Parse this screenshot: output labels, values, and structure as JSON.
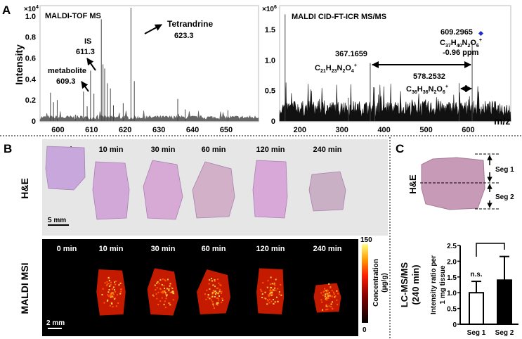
{
  "panels": {
    "a": "A",
    "b": "B",
    "c": "C"
  },
  "chart_data": [
    {
      "type": "line",
      "title": "MALDI-TOF MS",
      "xlabel": "",
      "ylabel": "Intensity",
      "y_multiplier": "×10",
      "y_exponent": "4",
      "xlim": [
        594.7,
        659.6
      ],
      "ylim": [
        0,
        1.1
      ],
      "xticks": [
        600,
        610,
        620,
        630,
        640,
        650
      ],
      "yticks": [
        0,
        0.2,
        0.4,
        0.6,
        0.8,
        1.0
      ],
      "ytick_labels": [
        "0",
        "0.2",
        "0.4",
        "0.6",
        "0.8",
        "1.0"
      ],
      "peaks": [
        [
          597.8,
          0.27
        ],
        [
          598.7,
          0.18
        ],
        [
          599.8,
          0.2
        ],
        [
          605.2,
          0.06
        ],
        [
          607.6,
          0.28
        ],
        [
          608.7,
          0.14
        ],
        [
          609.7,
          0.48
        ],
        [
          610.7,
          0.26
        ],
        [
          612.9,
          0.97
        ],
        [
          613.4,
          0.54
        ],
        [
          613.9,
          0.5
        ],
        [
          614.7,
          0.36
        ],
        [
          615.6,
          0.31
        ],
        [
          616.5,
          0.15
        ],
        [
          619.4,
          0.17
        ],
        [
          621.7,
          1.08
        ],
        [
          622.7,
          0.38
        ],
        [
          635.6,
          0.21
        ],
        [
          637.8,
          0.11
        ],
        [
          650.5,
          0.1
        ]
      ],
      "annotations": [
        {
          "label": "metabolite",
          "value": "609.3"
        },
        {
          "label": "IS",
          "value": "611.3"
        },
        {
          "label": "Tetrandrine",
          "value": "623.3"
        }
      ]
    },
    {
      "type": "line",
      "title": "MALDI CID-FT-ICR MS/MS",
      "xlabel": "m/z",
      "y_multiplier": "×10",
      "y_exponent": "6",
      "xlim": [
        152,
        701
      ],
      "ylim": [
        0,
        1.87
      ],
      "xticks": [
        200,
        300,
        400,
        500,
        600
      ],
      "yticks": [
        0,
        0.5,
        1.0,
        1.5
      ],
      "ytick_labels": [
        "0",
        "0.5",
        "1.0",
        "1.5"
      ],
      "peaks": [
        [
          165,
          1.75
        ],
        [
          315,
          0.38
        ],
        [
          367.2,
          0.95
        ],
        [
          378,
          0.55
        ],
        [
          578.3,
          0.62
        ],
        [
          609.3,
          1.3
        ]
      ],
      "annotations": [
        {
          "value": "367.1659",
          "formula": [
            "C",
            "21",
            "H",
            "23",
            "N",
            "2",
            "O",
            "4",
            "+"
          ]
        },
        {
          "value": "578.2532",
          "formula": [
            "C",
            "36",
            "H",
            "36",
            "N",
            "2",
            "O",
            "6",
            "+"
          ]
        },
        {
          "value": "609.2965",
          "formula": [
            "C",
            "37",
            "H",
            "40",
            "N",
            "2",
            "O",
            "6",
            "+"
          ],
          "error": "-0.96 ppm"
        }
      ]
    },
    {
      "type": "bar",
      "categories": [
        "Seg 1",
        "Seg 2"
      ],
      "values": [
        1.0,
        1.4
      ],
      "error_upper": [
        1.36,
        2.15
      ],
      "colors": [
        "#ffffff",
        "#000000"
      ],
      "ylabel_lines": [
        "Intensity ratio per",
        "1 mg tissue"
      ],
      "ylim": [
        0,
        2.5
      ],
      "yticks": [
        0,
        0.5,
        1.0,
        1.5,
        2.0,
        2.5
      ],
      "ytick_labels": [
        "0",
        "0.5",
        "1.0",
        "1.5",
        "2.0",
        "2.5"
      ],
      "significance": "n.s."
    }
  ],
  "panel_b": {
    "he_label": "H&E",
    "msi_label": "MALDI MSI",
    "times": [
      "0 min",
      "10 min",
      "30 min",
      "60 min",
      "120 min",
      "240 min"
    ],
    "he_scale": "5 mm",
    "msi_scale": "2 mm",
    "colorbar": {
      "max": "150",
      "min": "0",
      "label": "Concentration",
      "unit": "(μg/g)"
    }
  },
  "panel_c": {
    "he_label": "H&E",
    "segments": [
      "Seg 1",
      "Seg 2"
    ],
    "lcms_label": "LC-MS/MS",
    "lcms_sub": "(240 min)"
  }
}
